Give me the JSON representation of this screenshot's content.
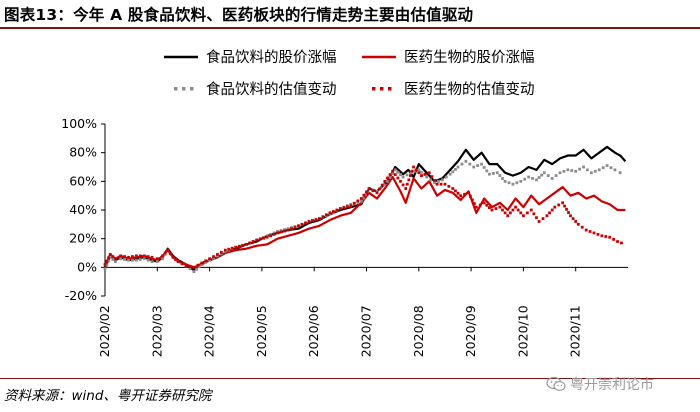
{
  "title": "图表13：今年 A 股食品饮料、医药板块的行情走势主要由估值驱动",
  "source": "资料来源：wind、粤开证券研究院",
  "watermark": "粤开崇利论市",
  "chart_data": {
    "type": "line",
    "title": "图表13：今年 A 股食品饮料、医药板块的行情走势主要由估值驱动",
    "x_labels": [
      "2020/02",
      "2020/03",
      "2020/04",
      "2020/05",
      "2020/06",
      "2020/07",
      "2020/08",
      "2020/09",
      "2020/10",
      "2020/11"
    ],
    "x_range": [
      0,
      10
    ],
    "ylim": [
      -20,
      100
    ],
    "y_ticks": [
      -20,
      0,
      20,
      40,
      60,
      80,
      100
    ],
    "y_tick_labels": [
      "-20%",
      "0%",
      "20%",
      "40%",
      "60%",
      "80%",
      "100%"
    ],
    "legend_position": "top",
    "series": [
      {
        "name": "食品饮料的股价涨幅",
        "style": "solid",
        "color": "#000000",
        "points": [
          [
            0,
            0
          ],
          [
            0.1,
            8
          ],
          [
            0.2,
            5
          ],
          [
            0.3,
            7
          ],
          [
            0.45,
            5
          ],
          [
            0.6,
            6
          ],
          [
            0.75,
            7
          ],
          [
            0.9,
            5
          ],
          [
            1.0,
            4
          ],
          [
            1.1,
            7
          ],
          [
            1.2,
            13
          ],
          [
            1.3,
            8
          ],
          [
            1.4,
            5
          ],
          [
            1.55,
            2
          ],
          [
            1.7,
            -2
          ],
          [
            1.85,
            3
          ],
          [
            2.0,
            5
          ],
          [
            2.15,
            7
          ],
          [
            2.3,
            10
          ],
          [
            2.5,
            13
          ],
          [
            2.7,
            16
          ],
          [
            2.9,
            18
          ],
          [
            3.1,
            22
          ],
          [
            3.3,
            24
          ],
          [
            3.5,
            26
          ],
          [
            3.7,
            27
          ],
          [
            3.9,
            31
          ],
          [
            4.1,
            33
          ],
          [
            4.3,
            37
          ],
          [
            4.5,
            40
          ],
          [
            4.7,
            42
          ],
          [
            4.9,
            44
          ],
          [
            5.05,
            55
          ],
          [
            5.2,
            53
          ],
          [
            5.4,
            60
          ],
          [
            5.55,
            70
          ],
          [
            5.7,
            65
          ],
          [
            5.8,
            68
          ],
          [
            5.9,
            63
          ],
          [
            6.0,
            72
          ],
          [
            6.15,
            66
          ],
          [
            6.3,
            60
          ],
          [
            6.45,
            62
          ],
          [
            6.6,
            68
          ],
          [
            6.75,
            74
          ],
          [
            6.9,
            82
          ],
          [
            7.05,
            75
          ],
          [
            7.2,
            80
          ],
          [
            7.35,
            72
          ],
          [
            7.5,
            72
          ],
          [
            7.65,
            66
          ],
          [
            7.8,
            64
          ],
          [
            7.95,
            66
          ],
          [
            8.1,
            70
          ],
          [
            8.25,
            68
          ],
          [
            8.4,
            75
          ],
          [
            8.55,
            72
          ],
          [
            8.7,
            76
          ],
          [
            8.85,
            78
          ],
          [
            9.0,
            78
          ],
          [
            9.15,
            82
          ],
          [
            9.3,
            76
          ],
          [
            9.45,
            80
          ],
          [
            9.6,
            84
          ],
          [
            9.75,
            80
          ],
          [
            9.85,
            78
          ],
          [
            9.95,
            74
          ]
        ]
      },
      {
        "name": "医药生物的股价涨幅",
        "style": "solid",
        "color": "#cc0000",
        "points": [
          [
            0,
            1
          ],
          [
            0.1,
            9
          ],
          [
            0.2,
            6
          ],
          [
            0.3,
            8
          ],
          [
            0.45,
            6
          ],
          [
            0.6,
            7
          ],
          [
            0.75,
            8
          ],
          [
            0.9,
            6
          ],
          [
            1.0,
            5
          ],
          [
            1.1,
            8
          ],
          [
            1.2,
            12
          ],
          [
            1.3,
            7
          ],
          [
            1.4,
            4
          ],
          [
            1.55,
            2
          ],
          [
            1.7,
            0
          ],
          [
            1.85,
            2
          ],
          [
            2.0,
            5
          ],
          [
            2.15,
            7
          ],
          [
            2.3,
            10
          ],
          [
            2.5,
            12
          ],
          [
            2.7,
            13
          ],
          [
            2.9,
            15
          ],
          [
            3.1,
            16
          ],
          [
            3.3,
            20
          ],
          [
            3.5,
            22
          ],
          [
            3.7,
            24
          ],
          [
            3.9,
            27
          ],
          [
            4.1,
            29
          ],
          [
            4.3,
            33
          ],
          [
            4.5,
            36
          ],
          [
            4.7,
            38
          ],
          [
            4.9,
            45
          ],
          [
            5.05,
            52
          ],
          [
            5.2,
            48
          ],
          [
            5.35,
            55
          ],
          [
            5.5,
            63
          ],
          [
            5.65,
            53
          ],
          [
            5.75,
            45
          ],
          [
            5.9,
            62
          ],
          [
            6.05,
            55
          ],
          [
            6.2,
            60
          ],
          [
            6.35,
            50
          ],
          [
            6.5,
            54
          ],
          [
            6.65,
            52
          ],
          [
            6.8,
            47
          ],
          [
            6.95,
            53
          ],
          [
            7.1,
            38
          ],
          [
            7.25,
            48
          ],
          [
            7.4,
            42
          ],
          [
            7.55,
            45
          ],
          [
            7.7,
            40
          ],
          [
            7.85,
            48
          ],
          [
            8.0,
            42
          ],
          [
            8.15,
            50
          ],
          [
            8.3,
            44
          ],
          [
            8.45,
            48
          ],
          [
            8.6,
            52
          ],
          [
            8.75,
            56
          ],
          [
            8.9,
            50
          ],
          [
            9.05,
            52
          ],
          [
            9.2,
            48
          ],
          [
            9.35,
            50
          ],
          [
            9.5,
            46
          ],
          [
            9.65,
            44
          ],
          [
            9.8,
            40
          ],
          [
            9.95,
            40
          ]
        ]
      },
      {
        "name": "食品饮料的估值变动",
        "style": "dotted",
        "color": "#8c8c8c",
        "points": [
          [
            0,
            -1
          ],
          [
            0.1,
            7
          ],
          [
            0.2,
            4
          ],
          [
            0.3,
            6
          ],
          [
            0.45,
            5
          ],
          [
            0.6,
            5
          ],
          [
            0.75,
            6
          ],
          [
            0.9,
            4
          ],
          [
            1.0,
            4
          ],
          [
            1.1,
            6
          ],
          [
            1.2,
            12
          ],
          [
            1.3,
            7
          ],
          [
            1.4,
            4
          ],
          [
            1.55,
            1
          ],
          [
            1.7,
            -3
          ],
          [
            1.85,
            2
          ],
          [
            2.0,
            5
          ],
          [
            2.15,
            8
          ],
          [
            2.3,
            11
          ],
          [
            2.5,
            14
          ],
          [
            2.7,
            16
          ],
          [
            2.9,
            19
          ],
          [
            3.1,
            22
          ],
          [
            3.3,
            25
          ],
          [
            3.5,
            27
          ],
          [
            3.7,
            29
          ],
          [
            3.9,
            32
          ],
          [
            4.1,
            34
          ],
          [
            4.3,
            37
          ],
          [
            4.5,
            41
          ],
          [
            4.7,
            44
          ],
          [
            4.9,
            46
          ],
          [
            5.05,
            55
          ],
          [
            5.2,
            53
          ],
          [
            5.4,
            60
          ],
          [
            5.55,
            68
          ],
          [
            5.7,
            63
          ],
          [
            5.85,
            66
          ],
          [
            6.0,
            68
          ],
          [
            6.15,
            63
          ],
          [
            6.3,
            59
          ],
          [
            6.45,
            61
          ],
          [
            6.6,
            65
          ],
          [
            6.75,
            70
          ],
          [
            6.9,
            74
          ],
          [
            7.05,
            70
          ],
          [
            7.2,
            72
          ],
          [
            7.35,
            65
          ],
          [
            7.5,
            66
          ],
          [
            7.65,
            60
          ],
          [
            7.8,
            58
          ],
          [
            7.95,
            60
          ],
          [
            8.1,
            63
          ],
          [
            8.25,
            61
          ],
          [
            8.4,
            66
          ],
          [
            8.55,
            62
          ],
          [
            8.7,
            66
          ],
          [
            8.85,
            68
          ],
          [
            9.0,
            67
          ],
          [
            9.15,
            70
          ],
          [
            9.3,
            66
          ],
          [
            9.45,
            68
          ],
          [
            9.6,
            71
          ],
          [
            9.75,
            68
          ],
          [
            9.85,
            66
          ],
          [
            9.95,
            65
          ]
        ]
      },
      {
        "name": "医药生物的估值变动",
        "style": "dotted",
        "color": "#cc0000",
        "points": [
          [
            0,
            2
          ],
          [
            0.1,
            9
          ],
          [
            0.2,
            6
          ],
          [
            0.3,
            8
          ],
          [
            0.45,
            7
          ],
          [
            0.6,
            8
          ],
          [
            0.75,
            8
          ],
          [
            0.9,
            7
          ],
          [
            1.0,
            6
          ],
          [
            1.1,
            8
          ],
          [
            1.2,
            12
          ],
          [
            1.3,
            7
          ],
          [
            1.4,
            4
          ],
          [
            1.55,
            1
          ],
          [
            1.7,
            0
          ],
          [
            1.85,
            3
          ],
          [
            2.0,
            6
          ],
          [
            2.15,
            9
          ],
          [
            2.3,
            12
          ],
          [
            2.5,
            14
          ],
          [
            2.7,
            16
          ],
          [
            2.9,
            19
          ],
          [
            3.1,
            21
          ],
          [
            3.3,
            24
          ],
          [
            3.5,
            26
          ],
          [
            3.7,
            29
          ],
          [
            3.9,
            32
          ],
          [
            4.1,
            34
          ],
          [
            4.3,
            38
          ],
          [
            4.5,
            41
          ],
          [
            4.7,
            43
          ],
          [
            4.9,
            48
          ],
          [
            5.05,
            55
          ],
          [
            5.2,
            52
          ],
          [
            5.35,
            60
          ],
          [
            5.5,
            67
          ],
          [
            5.65,
            60
          ],
          [
            5.75,
            55
          ],
          [
            5.9,
            70
          ],
          [
            6.05,
            64
          ],
          [
            6.2,
            66
          ],
          [
            6.35,
            58
          ],
          [
            6.5,
            58
          ],
          [
            6.65,
            55
          ],
          [
            6.8,
            50
          ],
          [
            6.95,
            52
          ],
          [
            7.1,
            42
          ],
          [
            7.25,
            45
          ],
          [
            7.4,
            40
          ],
          [
            7.55,
            42
          ],
          [
            7.7,
            36
          ],
          [
            7.85,
            42
          ],
          [
            8.0,
            36
          ],
          [
            8.15,
            40
          ],
          [
            8.3,
            32
          ],
          [
            8.45,
            36
          ],
          [
            8.6,
            42
          ],
          [
            8.75,
            45
          ],
          [
            8.9,
            36
          ],
          [
            9.05,
            30
          ],
          [
            9.2,
            26
          ],
          [
            9.35,
            24
          ],
          [
            9.5,
            22
          ],
          [
            9.65,
            21
          ],
          [
            9.8,
            18
          ],
          [
            9.95,
            16
          ]
        ]
      }
    ]
  }
}
